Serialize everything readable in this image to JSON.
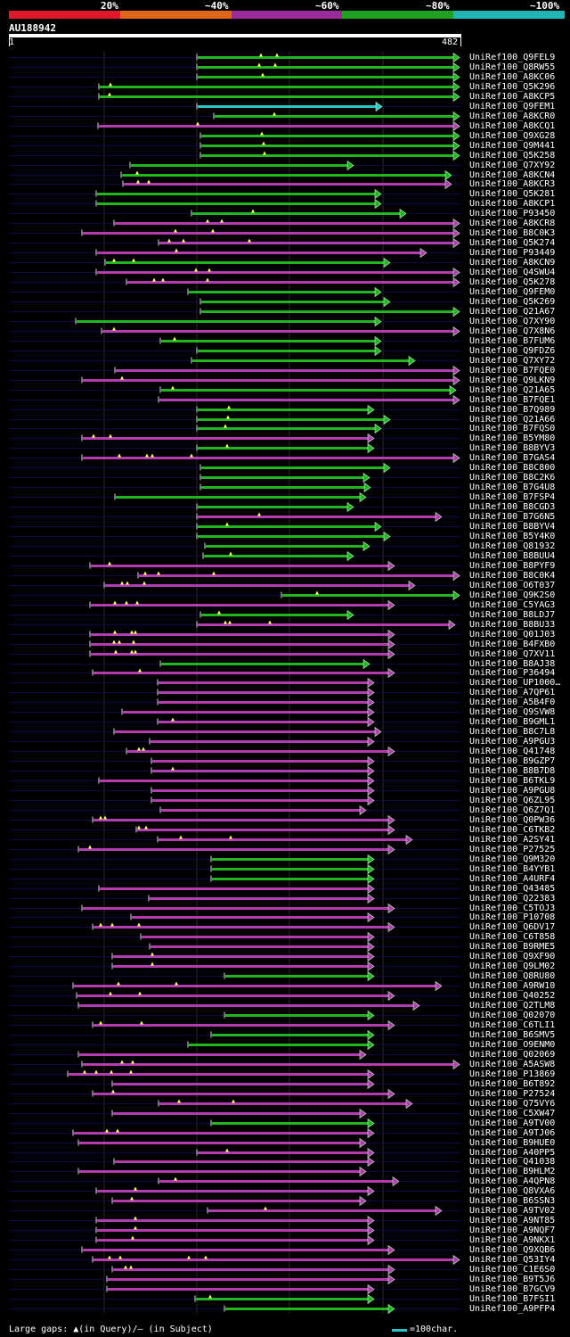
{
  "legend": {
    "bins": [
      {
        "label": "20%",
        "color": "#e0182b"
      },
      {
        "label": "~40%",
        "color": "#e0661b"
      },
      {
        "label": "~60%",
        "color": "#9b2b9b"
      },
      {
        "label": "~80%",
        "color": "#22a022"
      },
      {
        "label": "~100%",
        "color": "#1fb5b5"
      }
    ]
  },
  "query": {
    "id": "AU188942",
    "start": "1",
    "end": "482"
  },
  "colors": {
    "purple": "#b23cb2",
    "green": "#22b522",
    "cyan": "#28c8c8",
    "faint": "#0a0a48",
    "grid": "#2a2a2a",
    "tri": "#ffff66"
  },
  "hits": [
    {
      "id": "UniRef100_Q9FEL9",
      "c": "g",
      "s": 221,
      "e": 515,
      "m": [
        293,
        311
      ]
    },
    {
      "id": "UniRef100_Q8RW55",
      "c": "g",
      "s": 221,
      "e": 515,
      "m": [
        291,
        309
      ]
    },
    {
      "id": "UniRef100_A8KC06",
      "c": "g",
      "s": 221,
      "e": 515,
      "m": [
        295
      ]
    },
    {
      "id": "UniRef100_Q5K296",
      "c": "g",
      "s": 111,
      "e": 515,
      "m": [
        124
      ]
    },
    {
      "id": "UniRef100_A8KCP5",
      "c": "g",
      "s": 111,
      "e": 515,
      "m": [
        123
      ]
    },
    {
      "id": "UniRef100_Q9FEM1",
      "c": "c",
      "s": 221,
      "e": 428,
      "m": []
    },
    {
      "id": "UniRef100_A8KCR0",
      "c": "g",
      "s": 240,
      "e": 515,
      "m": [
        308
      ]
    },
    {
      "id": "UniRef100_A8KCQ1",
      "c": "p",
      "s": 110,
      "e": 515,
      "m": [
        222
      ]
    },
    {
      "id": "UniRef100_Q9XG28",
      "c": "g",
      "s": 225,
      "e": 515,
      "m": [
        294
      ]
    },
    {
      "id": "UniRef100_Q9M441",
      "c": "g",
      "s": 225,
      "e": 515,
      "m": [
        296
      ]
    },
    {
      "id": "UniRef100_Q5K258",
      "c": "g",
      "s": 225,
      "e": 515,
      "m": [
        297
      ]
    },
    {
      "id": "UniRef100_Q7XY92",
      "c": "g",
      "s": 146,
      "e": 396,
      "m": []
    },
    {
      "id": "UniRef100_A8KCN4",
      "c": "g",
      "s": 136,
      "e": 506,
      "m": [
        154
      ]
    },
    {
      "id": "UniRef100_A8KCR3",
      "c": "p",
      "s": 138,
      "e": 506,
      "m": [
        155,
        167
      ]
    },
    {
      "id": "UniRef100_Q5K281",
      "c": "g",
      "s": 108,
      "e": 427,
      "m": []
    },
    {
      "id": "UniRef100_A8KCP1",
      "c": "g",
      "s": 108,
      "e": 427,
      "m": []
    },
    {
      "id": "UniRef100_P93450",
      "c": "g",
      "s": 215,
      "e": 455,
      "m": [
        284
      ]
    },
    {
      "id": "UniRef100_A8KCR8",
      "c": "p",
      "s": 128,
      "e": 515,
      "m": [
        233,
        249
      ]
    },
    {
      "id": "UniRef100_B8C0K3",
      "c": "p",
      "s": 92,
      "e": 515,
      "m": [
        197,
        239
      ]
    },
    {
      "id": "UniRef100_Q5K274",
      "c": "p",
      "s": 178,
      "e": 515,
      "m": [
        190,
        206,
        280
      ]
    },
    {
      "id": "UniRef100_P93449",
      "c": "p",
      "s": 108,
      "e": 478,
      "m": [
        198
      ]
    },
    {
      "id": "UniRef100_A8KCN9",
      "c": "g",
      "s": 118,
      "e": 437,
      "m": [
        128,
        150
      ]
    },
    {
      "id": "UniRef100_Q4SWU4",
      "c": "p",
      "s": 108,
      "e": 515,
      "m": [
        220,
        235
      ]
    },
    {
      "id": "UniRef100_Q5K278",
      "c": "p",
      "s": 142,
      "e": 515,
      "m": [
        173,
        183,
        233
      ]
    },
    {
      "id": "UniRef100_Q9FEM0",
      "c": "g",
      "s": 211,
      "e": 427,
      "m": []
    },
    {
      "id": "UniRef100_Q5K269",
      "c": "g",
      "s": 225,
      "e": 437,
      "m": []
    },
    {
      "id": "UniRef100_Q21A67",
      "c": "g",
      "s": 225,
      "e": 515,
      "m": []
    },
    {
      "id": "UniRef100_Q7XY90",
      "c": "g",
      "s": 85,
      "e": 427,
      "m": []
    },
    {
      "id": "UniRef100_Q7X8N6",
      "c": "p",
      "s": 114,
      "e": 515,
      "m": [
        128
      ]
    },
    {
      "id": "UniRef100_B7FUM6",
      "c": "g",
      "s": 180,
      "e": 427,
      "m": [
        196
      ]
    },
    {
      "id": "UniRef100_Q9FDZ6",
      "c": "g",
      "s": 221,
      "e": 427,
      "m": []
    },
    {
      "id": "UniRef100_Q7XY72",
      "c": "g",
      "s": 215,
      "e": 465,
      "m": []
    },
    {
      "id": "UniRef100_B7FQE0",
      "c": "p",
      "s": 129,
      "e": 515,
      "m": []
    },
    {
      "id": "UniRef100_Q9LKN9",
      "c": "p",
      "s": 92,
      "e": 515,
      "m": [
        137
      ]
    },
    {
      "id": "UniRef100_Q21A65",
      "c": "g",
      "s": 180,
      "e": 511,
      "m": [
        194
      ]
    },
    {
      "id": "UniRef100_B7FQE1",
      "c": "p",
      "s": 178,
      "e": 515,
      "m": []
    },
    {
      "id": "UniRef100_B7Q989",
      "c": "g",
      "s": 221,
      "e": 419,
      "m": [
        257
      ]
    },
    {
      "id": "UniRef100_Q21A66",
      "c": "g",
      "s": 221,
      "e": 437,
      "m": [
        256
      ]
    },
    {
      "id": "UniRef100_B7FQS0",
      "c": "g",
      "s": 221,
      "e": 427,
      "m": [
        253
      ]
    },
    {
      "id": "UniRef100_B5YM80",
      "c": "p",
      "s": 92,
      "e": 419,
      "m": [
        105,
        124
      ]
    },
    {
      "id": "UniRef100_B8BYV3",
      "c": "g",
      "s": 221,
      "e": 419,
      "m": [
        255
      ]
    },
    {
      "id": "UniRef100_B7GAS4",
      "c": "p",
      "s": 92,
      "e": 515,
      "m": [
        134,
        165,
        171,
        215
      ]
    },
    {
      "id": "UniRef100_B8C800",
      "c": "g",
      "s": 225,
      "e": 437,
      "m": []
    },
    {
      "id": "UniRef100_B8C2K6",
      "c": "g",
      "s": 225,
      "e": 414,
      "m": []
    },
    {
      "id": "UniRef100_B7G4U8",
      "c": "g",
      "s": 225,
      "e": 415,
      "m": []
    },
    {
      "id": "UniRef100_B7FSP4",
      "c": "g",
      "s": 129,
      "e": 410,
      "m": []
    },
    {
      "id": "UniRef100_B8CGD3",
      "c": "g",
      "s": 221,
      "e": 396,
      "m": []
    },
    {
      "id": "UniRef100_B7G6N5",
      "c": "p",
      "s": 221,
      "e": 495,
      "m": [
        291
      ]
    },
    {
      "id": "UniRef100_B8BYV4",
      "c": "g",
      "s": 221,
      "e": 427,
      "m": [
        255
      ]
    },
    {
      "id": "UniRef100_B5Y4K0",
      "c": "g",
      "s": 221,
      "e": 437,
      "m": []
    },
    {
      "id": "UniRef100_Q81932",
      "c": "g",
      "s": 230,
      "e": 414,
      "m": []
    },
    {
      "id": "UniRef100_B8BUU4",
      "c": "g",
      "s": 228,
      "e": 396,
      "m": [
        259
      ]
    },
    {
      "id": "UniRef100_B8PYF9",
      "c": "p",
      "s": 101,
      "e": 442,
      "m": [
        123
      ]
    },
    {
      "id": "UniRef100_B8C0K4",
      "c": "p",
      "s": 155,
      "e": 515,
      "m": [
        163,
        178,
        240
      ]
    },
    {
      "id": "UniRef100_O6T037",
      "c": "p",
      "s": 117,
      "e": 465,
      "m": [
        137,
        143,
        162
      ]
    },
    {
      "id": "UniRef100_Q9K2S0",
      "c": "g",
      "s": 316,
      "e": 515,
      "m": [
        356
      ]
    },
    {
      "id": "UniRef100_C5YAG3",
      "c": "p",
      "s": 101,
      "e": 442,
      "m": [
        129,
        142,
        154
      ]
    },
    {
      "id": "UniRef100_B8LDJ7",
      "c": "g",
      "s": 225,
      "e": 396,
      "m": [
        246
      ]
    },
    {
      "id": "UniRef100_B8BU33",
      "c": "p",
      "s": 221,
      "e": 510,
      "m": [
        253,
        258,
        303
      ]
    },
    {
      "id": "UniRef100_Q01J03",
      "c": "p",
      "s": 101,
      "e": 442,
      "m": [
        129,
        148,
        152
      ]
    },
    {
      "id": "UniRef100_B4FXB0",
      "c": "p",
      "s": 101,
      "e": 442,
      "m": [
        128,
        134,
        150
      ]
    },
    {
      "id": "UniRef100_Q7XV11",
      "c": "p",
      "s": 101,
      "e": 442,
      "m": [
        130,
        148,
        152
      ]
    },
    {
      "id": "UniRef100_B8AJ38",
      "c": "g",
      "s": 180,
      "e": 414,
      "m": []
    },
    {
      "id": "UniRef100_P36494",
      "c": "p",
      "s": 104,
      "e": 442,
      "m": [
        157
      ]
    },
    {
      "id": "UniRef100_UP1000…",
      "c": "p",
      "s": 177,
      "e": 419,
      "m": []
    },
    {
      "id": "UniRef100_A7QP61",
      "c": "p",
      "s": 177,
      "e": 419,
      "m": []
    },
    {
      "id": "UniRef100_A5B4F0",
      "c": "p",
      "s": 177,
      "e": 419,
      "m": []
    },
    {
      "id": "UniRef100_Q9SVW8",
      "c": "p",
      "s": 137,
      "e": 419,
      "m": []
    },
    {
      "id": "UniRef100_B9GML1",
      "c": "p",
      "s": 177,
      "e": 419,
      "m": [
        194
      ]
    },
    {
      "id": "UniRef100_B8C7L8",
      "c": "p",
      "s": 128,
      "e": 427,
      "m": []
    },
    {
      "id": "UniRef100_A9PGU3",
      "c": "p",
      "s": 168,
      "e": 419,
      "m": []
    },
    {
      "id": "UniRef100_Q41748",
      "c": "p",
      "s": 142,
      "e": 442,
      "m": [
        156,
        161
      ]
    },
    {
      "id": "UniRef100_B9GZP7",
      "c": "p",
      "s": 170,
      "e": 419,
      "m": []
    },
    {
      "id": "UniRef100_B8B7D8",
      "c": "p",
      "s": 170,
      "e": 419,
      "m": [
        194
      ]
    },
    {
      "id": "UniRef100_B6TKL9",
      "c": "p",
      "s": 111,
      "e": 419,
      "m": []
    },
    {
      "id": "UniRef100_A9PGU8",
      "c": "p",
      "s": 170,
      "e": 419,
      "m": []
    },
    {
      "id": "UniRef100_Q6ZL95",
      "c": "p",
      "s": 170,
      "e": 419,
      "m": []
    },
    {
      "id": "UniRef100_Q6Z7Q1",
      "c": "p",
      "s": 180,
      "e": 410,
      "m": []
    },
    {
      "id": "UniRef100_Q0PW36",
      "c": "p",
      "s": 104,
      "e": 442,
      "m": [
        113,
        118
      ]
    },
    {
      "id": "UniRef100_C6TKB2",
      "c": "p",
      "s": 153,
      "e": 442,
      "m": [
        156,
        164
      ]
    },
    {
      "id": "UniRef100_A2SY41",
      "c": "p",
      "s": 177,
      "e": 462,
      "m": [
        203,
        259
      ]
    },
    {
      "id": "UniRef100_P27525",
      "c": "p",
      "s": 88,
      "e": 442,
      "m": [
        101
      ]
    },
    {
      "id": "UniRef100_Q9M320",
      "c": "g",
      "s": 237,
      "e": 419,
      "m": []
    },
    {
      "id": "UniRef100_B4YYB1",
      "c": "g",
      "s": 237,
      "e": 419,
      "m": []
    },
    {
      "id": "UniRef100_A4URF4",
      "c": "g",
      "s": 237,
      "e": 419,
      "m": []
    },
    {
      "id": "UniRef100_Q43485",
      "c": "p",
      "s": 111,
      "e": 419,
      "m": []
    },
    {
      "id": "UniRef100_Q22383",
      "c": "p",
      "s": 167,
      "e": 419,
      "m": []
    },
    {
      "id": "UniRef100_C5TOJ3",
      "c": "p",
      "s": 92,
      "e": 442,
      "m": []
    },
    {
      "id": "UniRef100_P10708",
      "c": "p",
      "s": 147,
      "e": 419,
      "m": []
    },
    {
      "id": "UniRef100_Q6DV17",
      "c": "p",
      "s": 104,
      "e": 442,
      "m": [
        113,
        126,
        156
      ]
    },
    {
      "id": "UniRef100_C6T858",
      "c": "p",
      "s": 158,
      "e": 419,
      "m": []
    },
    {
      "id": "UniRef100_B9RME5",
      "c": "p",
      "s": 168,
      "e": 419,
      "m": []
    },
    {
      "id": "UniRef100_Q9XF90",
      "c": "p",
      "s": 126,
      "e": 419,
      "m": [
        171
      ]
    },
    {
      "id": "UniRef100_Q9LM02",
      "c": "p",
      "s": 126,
      "e": 419,
      "m": [
        171
      ]
    },
    {
      "id": "UniRef100_Q8RU80",
      "c": "g",
      "s": 252,
      "e": 419,
      "m": []
    },
    {
      "id": "UniRef100_A9RW10",
      "c": "p",
      "s": 82,
      "e": 495,
      "m": [
        133,
        198
      ]
    },
    {
      "id": "UniRef100_Q40252",
      "c": "p",
      "s": 86,
      "e": 442,
      "m": [
        124,
        157
      ]
    },
    {
      "id": "UniRef100_Q2TLM8",
      "c": "p",
      "s": 88,
      "e": 470,
      "m": []
    },
    {
      "id": "UniRef100_Q02070",
      "c": "g",
      "s": 252,
      "e": 419,
      "m": []
    },
    {
      "id": "UniRef100_C6TLI1",
      "c": "p",
      "s": 104,
      "e": 442,
      "m": [
        113,
        159
      ]
    },
    {
      "id": "UniRef100_B6SMV5",
      "c": "g",
      "s": 237,
      "e": 419,
      "m": []
    },
    {
      "id": "UniRef100_O9ENM0",
      "c": "g",
      "s": 211,
      "e": 419,
      "m": []
    },
    {
      "id": "UniRef100_Q02069",
      "c": "p",
      "s": 88,
      "e": 410,
      "m": []
    },
    {
      "id": "UniRef100_A5ASW8",
      "c": "p",
      "s": 92,
      "e": 515,
      "m": [
        137,
        149
      ]
    },
    {
      "id": "UniRef100_P13869",
      "c": "p",
      "s": 76,
      "e": 419,
      "m": [
        95,
        108,
        125,
        147
      ]
    },
    {
      "id": "UniRef100_B6T892",
      "c": "p",
      "s": 126,
      "e": 419,
      "m": []
    },
    {
      "id": "UniRef100_P27524",
      "c": "p",
      "s": 104,
      "e": 442,
      "m": [
        127
      ]
    },
    {
      "id": "UniRef100_Q75VY6",
      "c": "p",
      "s": 178,
      "e": 462,
      "m": [
        201,
        262
      ]
    },
    {
      "id": "UniRef100_C5XW47",
      "c": "p",
      "s": 126,
      "e": 410,
      "m": []
    },
    {
      "id": "UniRef100_A9TV00",
      "c": "g",
      "s": 237,
      "e": 419,
      "m": []
    },
    {
      "id": "UniRef100_A9TJ06",
      "c": "p",
      "s": 82,
      "e": 419,
      "m": [
        120,
        132
      ]
    },
    {
      "id": "UniRef100_B9HUE0",
      "c": "p",
      "s": 88,
      "e": 410,
      "m": []
    },
    {
      "id": "UniRef100_A40PP5",
      "c": "p",
      "s": 221,
      "e": 419,
      "m": [
        255
      ]
    },
    {
      "id": "UniRef100_Q41038",
      "c": "p",
      "s": 128,
      "e": 419,
      "m": []
    },
    {
      "id": "UniRef100_B9HLM2",
      "c": "p",
      "s": 88,
      "e": 410,
      "m": []
    },
    {
      "id": "UniRef100_A4QPN8",
      "c": "p",
      "s": 178,
      "e": 447,
      "m": [
        197
      ]
    },
    {
      "id": "UniRef100_Q8VXA6",
      "c": "p",
      "s": 108,
      "e": 419,
      "m": [
        152
      ]
    },
    {
      "id": "UniRef100_B6SSN3",
      "c": "p",
      "s": 126,
      "e": 410,
      "m": [
        148
      ]
    },
    {
      "id": "UniRef100_A9TV02",
      "c": "p",
      "s": 233,
      "e": 495,
      "m": [
        298
      ]
    },
    {
      "id": "UniRef100_A9NT85",
      "c": "p",
      "s": 108,
      "e": 419,
      "m": [
        152
      ]
    },
    {
      "id": "UniRef100_A9NQF7",
      "c": "p",
      "s": 108,
      "e": 419,
      "m": [
        152
      ]
    },
    {
      "id": "UniRef100_A9NKX1",
      "c": "p",
      "s": 108,
      "e": 419,
      "m": [
        149
      ]
    },
    {
      "id": "UniRef100_Q9XQB6",
      "c": "p",
      "s": 92,
      "e": 442,
      "m": []
    },
    {
      "id": "UniRef100_Q53IY4",
      "c": "p",
      "s": 104,
      "e": 515,
      "m": [
        123,
        135,
        212,
        231
      ]
    },
    {
      "id": "UniRef100_C1E6S0",
      "c": "p",
      "s": 126,
      "e": 442,
      "m": [
        141,
        147
      ]
    },
    {
      "id": "UniRef100_B9T5J6",
      "c": "p",
      "s": 120,
      "e": 442,
      "m": []
    },
    {
      "id": "UniRef100_B7GCV9",
      "c": "p",
      "s": 120,
      "e": 419,
      "m": []
    },
    {
      "id": "UniRef100_B7FSI1",
      "c": "g",
      "s": 219,
      "e": 419,
      "m": [
        236
      ]
    },
    {
      "id": "UniRef100_A9PFP4",
      "c": "g",
      "s": 252,
      "e": 442,
      "m": []
    }
  ],
  "footer": {
    "text": "Large gaps: ▲(in Query)/– (in Subject)",
    "scale_text": "=100char."
  }
}
